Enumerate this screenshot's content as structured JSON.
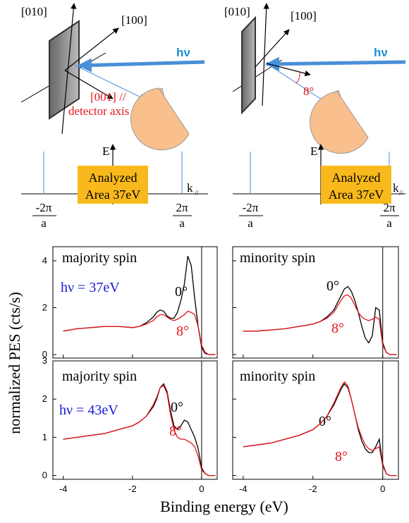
{
  "diagrams": [
    {
      "axis_a": "[010]",
      "axis_b": "[100]",
      "photon": "hν",
      "detector": [
        "[001] //",
        "detector axis"
      ],
      "E": "E",
      "k": "k",
      "k_sub": "//",
      "left_tick": {
        "num": "-2π",
        "den": "a"
      },
      "right_tick": {
        "num": "2π",
        "den": "a"
      },
      "box": [
        "Analyzed",
        "Area 37eV"
      ]
    },
    {
      "axis_a": "[010]",
      "axis_b": "[100]",
      "photon": "hν",
      "angle": "8°",
      "E": "E",
      "k": "k",
      "k_sub": "//",
      "left_tick": {
        "num": "-2π",
        "den": "a"
      },
      "right_tick": {
        "num": "2π",
        "den": "a"
      },
      "box": [
        "Analyzed",
        "Area 37eV"
      ]
    }
  ],
  "figure": {
    "ylabel": "normalized  PES (cts/s)",
    "xlabel": "Binding energy (eV)"
  },
  "chart_data": [
    {
      "type": "line",
      "title": "majority spin",
      "annotation": "hν = 37eV",
      "x": [
        -4,
        -3.6,
        -3.2,
        -2.8,
        -2.4,
        -2.0,
        -1.8,
        -1.6,
        -1.4,
        -1.3,
        -1.2,
        -1.1,
        -1.0,
        -0.9,
        -0.8,
        -0.7,
        -0.6,
        -0.5,
        -0.4,
        -0.3,
        -0.2,
        -0.1,
        0,
        0.1,
        0.2,
        0.4
      ],
      "series": [
        {
          "name": "0°",
          "color": "#000000",
          "values": [
            1.0,
            1.1,
            1.15,
            1.2,
            1.2,
            1.15,
            1.2,
            1.35,
            1.6,
            1.8,
            1.9,
            1.85,
            1.65,
            1.55,
            1.55,
            1.8,
            2.3,
            3.0,
            4.2,
            3.8,
            2.4,
            1.2,
            0.3,
            0.05,
            0,
            0
          ]
        },
        {
          "name": "8°",
          "color": "#e8141b",
          "values": [
            1.0,
            1.1,
            1.15,
            1.2,
            1.2,
            1.15,
            1.2,
            1.3,
            1.45,
            1.6,
            1.7,
            1.7,
            1.6,
            1.5,
            1.45,
            1.5,
            1.6,
            1.7,
            1.85,
            1.8,
            1.7,
            1.2,
            0.4,
            0.1,
            0,
            0
          ]
        }
      ],
      "xlim": [
        -4.3,
        0.45
      ],
      "ylim": [
        -0.15,
        4.6
      ],
      "yticks": [
        0,
        2,
        4
      ]
    },
    {
      "type": "line",
      "title": "minority spin",
      "x": [
        -4,
        -3.6,
        -3.2,
        -2.8,
        -2.4,
        -2.0,
        -1.8,
        -1.6,
        -1.4,
        -1.3,
        -1.2,
        -1.1,
        -1.0,
        -0.9,
        -0.8,
        -0.7,
        -0.6,
        -0.5,
        -0.4,
        -0.3,
        -0.2,
        -0.1,
        0,
        0.1,
        0.2,
        0.4
      ],
      "series": [
        {
          "name": "0°",
          "color": "#000000",
          "values": [
            1.0,
            1.0,
            1.05,
            1.1,
            1.2,
            1.3,
            1.4,
            1.6,
            1.9,
            2.2,
            2.5,
            2.8,
            2.9,
            2.7,
            2.3,
            1.8,
            1.2,
            0.7,
            0.5,
            0.8,
            2.0,
            1.9,
            0.5,
            0.1,
            0,
            0
          ]
        },
        {
          "name": "8°",
          "color": "#e8141b",
          "values": [
            1.0,
            1.0,
            1.05,
            1.1,
            1.2,
            1.3,
            1.4,
            1.55,
            1.8,
            2.05,
            2.3,
            2.5,
            2.55,
            2.4,
            2.1,
            1.8,
            1.6,
            1.5,
            1.45,
            1.5,
            1.6,
            1.5,
            0.4,
            0.1,
            0,
            0
          ]
        }
      ],
      "xlim": [
        -4.3,
        0.45
      ],
      "ylim": [
        -0.15,
        4.6
      ]
    },
    {
      "type": "line",
      "title": "majority spin",
      "annotation": "hν = 43eV",
      "x": [
        -4,
        -3.6,
        -3.2,
        -2.8,
        -2.4,
        -2.0,
        -1.8,
        -1.6,
        -1.4,
        -1.3,
        -1.2,
        -1.1,
        -1.0,
        -0.9,
        -0.8,
        -0.7,
        -0.6,
        -0.5,
        -0.4,
        -0.3,
        -0.2,
        -0.1,
        0,
        0.1,
        0.2,
        0.4
      ],
      "series": [
        {
          "name": "0°",
          "color": "#000000",
          "values": [
            0.95,
            1.0,
            1.05,
            1.1,
            1.2,
            1.3,
            1.4,
            1.55,
            1.8,
            2.0,
            2.3,
            2.4,
            2.2,
            1.7,
            1.3,
            1.2,
            1.3,
            1.45,
            1.4,
            1.2,
            1.0,
            0.7,
            0.2,
            0.05,
            0,
            0
          ]
        },
        {
          "name": "8°",
          "color": "#e8141b",
          "values": [
            0.95,
            1.0,
            1.05,
            1.1,
            1.2,
            1.3,
            1.4,
            1.55,
            1.85,
            2.05,
            2.3,
            2.35,
            2.15,
            1.6,
            1.2,
            1.0,
            0.95,
            0.95,
            0.9,
            0.85,
            0.75,
            0.5,
            0.15,
            0.05,
            0,
            0
          ]
        }
      ],
      "xlim": [
        -4.3,
        0.45
      ],
      "ylim": [
        -0.1,
        3.0
      ],
      "yticks": [
        0,
        1,
        2,
        3
      ],
      "xticks": [
        -4,
        -2,
        0
      ]
    },
    {
      "type": "line",
      "title": "minority spin",
      "x": [
        -4,
        -3.6,
        -3.2,
        -2.8,
        -2.4,
        -2.0,
        -1.8,
        -1.6,
        -1.4,
        -1.3,
        -1.2,
        -1.1,
        -1.0,
        -0.9,
        -0.8,
        -0.7,
        -0.6,
        -0.5,
        -0.4,
        -0.3,
        -0.2,
        -0.1,
        0,
        0.1,
        0.2,
        0.4
      ],
      "series": [
        {
          "name": "0°",
          "color": "#000000",
          "values": [
            0.75,
            0.8,
            0.85,
            0.95,
            1.05,
            1.2,
            1.35,
            1.55,
            1.85,
            2.05,
            2.25,
            2.4,
            2.3,
            2.0,
            1.6,
            1.2,
            0.9,
            0.7,
            0.6,
            0.6,
            0.75,
            0.95,
            0.3,
            0.05,
            0,
            0
          ]
        },
        {
          "name": "8°",
          "color": "#e8141b",
          "values": [
            0.75,
            0.8,
            0.85,
            0.95,
            1.05,
            1.2,
            1.35,
            1.55,
            1.9,
            2.1,
            2.3,
            2.45,
            2.35,
            2.0,
            1.6,
            1.25,
            1.0,
            0.8,
            0.7,
            0.65,
            0.7,
            0.75,
            0.25,
            0.05,
            0,
            0
          ]
        }
      ],
      "xlim": [
        -4.3,
        0.45
      ],
      "ylim": [
        -0.1,
        3.0
      ],
      "xticks": [
        -4,
        -2,
        0
      ]
    }
  ]
}
